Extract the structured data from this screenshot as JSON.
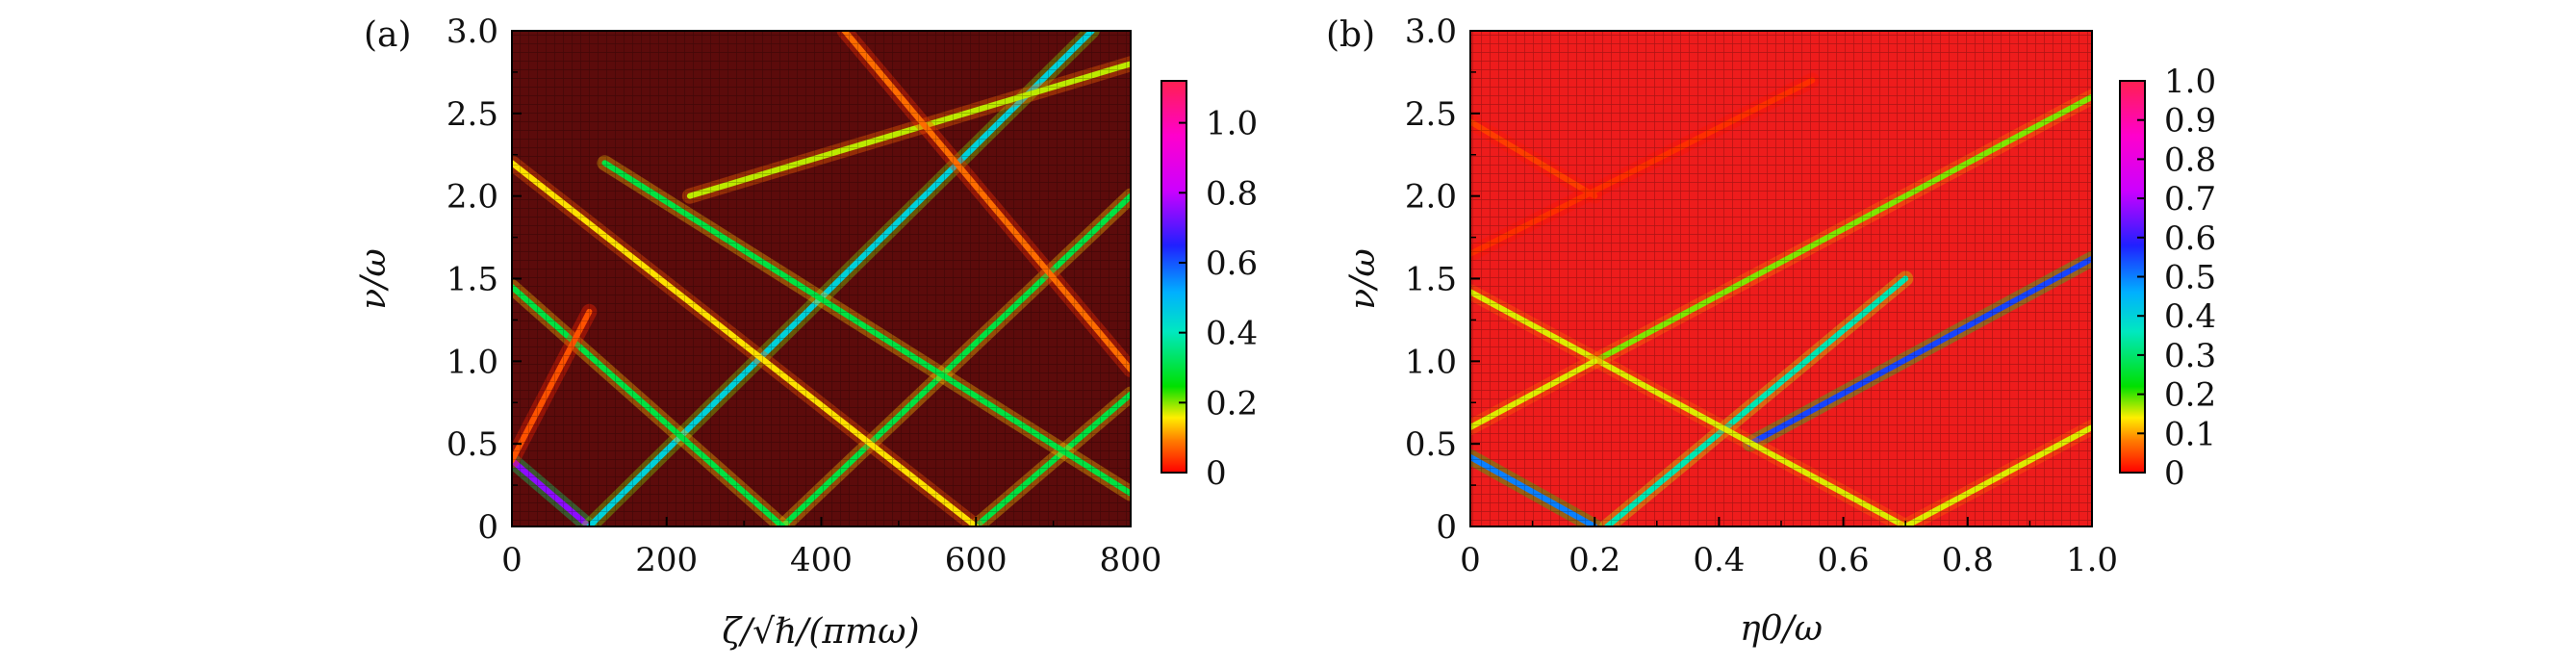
{
  "chart_data": [
    {
      "type": "heatmap",
      "panel_label": "(a)",
      "xlabel": "ζ/√ℏ/(πmω)",
      "ylabel": "ν/ω",
      "xlim": [
        0,
        800
      ],
      "ylim": [
        0,
        3.0
      ],
      "x_ticks": [
        "0",
        "200",
        "400",
        "600",
        "800"
      ],
      "y_ticks": [
        "0",
        "0.5",
        "1.0",
        "1.5",
        "2.0",
        "2.5",
        "3.0"
      ],
      "x_tick_values": [
        0,
        200,
        400,
        600,
        800
      ],
      "y_tick_values": [
        0,
        0.5,
        1.0,
        1.5,
        2.0,
        2.5,
        3.0
      ],
      "colorbar": {
        "ticks": [
          "0",
          "0.2",
          "0.4",
          "0.6",
          "0.8",
          "1.0"
        ],
        "tick_values": [
          0,
          0.2,
          0.4,
          0.6,
          0.8,
          1.0
        ],
        "range": [
          0,
          1.12
        ]
      },
      "background_value": 0.0,
      "lines": [
        {
          "points": [
            [
              0,
              0.4
            ],
            [
              100,
              0.0
            ]
          ],
          "value": 0.75
        },
        {
          "points": [
            [
              100,
              0.0
            ],
            [
              750,
              3.0
            ]
          ],
          "value": 0.45
        },
        {
          "points": [
            [
              350,
              0.0
            ],
            [
              800,
              2.0
            ]
          ],
          "value": 0.3
        },
        {
          "points": [
            [
              600,
              0.0
            ],
            [
              800,
              0.8
            ]
          ],
          "value": 0.3
        },
        {
          "points": [
            [
              0,
              1.45
            ],
            [
              350,
              0.0
            ]
          ],
          "value": 0.3
        },
        {
          "points": [
            [
              0,
              2.2
            ],
            [
              600,
              0.0
            ]
          ],
          "value": 0.15
        },
        {
          "points": [
            [
              120,
              2.2
            ],
            [
              800,
              0.2
            ]
          ],
          "value": 0.3
        },
        {
          "points": [
            [
              230,
              2.0
            ],
            [
              800,
              2.8
            ]
          ],
          "value": 0.18
        },
        {
          "points": [
            [
              430,
              3.0
            ],
            [
              800,
              0.95
            ]
          ],
          "value": 0.08
        },
        {
          "points": [
            [
              0,
              0.4
            ],
            [
              100,
              1.3
            ]
          ],
          "value": 0.06
        }
      ]
    },
    {
      "type": "heatmap",
      "panel_label": "(b)",
      "xlabel": "η0/ω",
      "ylabel": "ν/ω",
      "xlim": [
        0,
        1.0
      ],
      "ylim": [
        0,
        3.0
      ],
      "x_ticks": [
        "0",
        "0.2",
        "0.4",
        "0.6",
        "0.8",
        "1.0"
      ],
      "y_ticks": [
        "0",
        "0.5",
        "1.0",
        "1.5",
        "2.0",
        "2.5",
        "3.0"
      ],
      "x_tick_values": [
        0,
        0.2,
        0.4,
        0.6,
        0.8,
        1.0
      ],
      "y_tick_values": [
        0,
        0.5,
        1.0,
        1.5,
        2.0,
        2.5,
        3.0
      ],
      "colorbar": {
        "ticks": [
          "0",
          "0.1",
          "0.2",
          "0.3",
          "0.4",
          "0.5",
          "0.6",
          "0.7",
          "0.8",
          "0.9",
          "1.0"
        ],
        "tick_values": [
          0,
          0.1,
          0.2,
          0.3,
          0.4,
          0.5,
          0.6,
          0.7,
          0.8,
          0.9,
          1.0
        ],
        "range": [
          0,
          1.0
        ]
      },
      "background_value": 0.0,
      "lines": [
        {
          "points": [
            [
              0,
              0.42
            ],
            [
              0.2,
              0.0
            ]
          ],
          "value": 0.5
        },
        {
          "points": [
            [
              0.22,
              0.0
            ],
            [
              0.7,
              1.5
            ]
          ],
          "value": 0.35
        },
        {
          "points": [
            [
              0.45,
              0.5
            ],
            [
              1.0,
              1.62
            ]
          ],
          "value": 0.55
        },
        {
          "points": [
            [
              0.2,
              1.0
            ],
            [
              1.0,
              2.6
            ]
          ],
          "value": 0.18
        },
        {
          "points": [
            [
              0,
              1.42
            ],
            [
              0.7,
              0.0
            ]
          ],
          "value": 0.15
        },
        {
          "points": [
            [
              0,
              0.6
            ],
            [
              0.2,
              1.0
            ]
          ],
          "value": 0.15
        },
        {
          "points": [
            [
              0.7,
              0.0
            ],
            [
              1.0,
              0.6
            ]
          ],
          "value": 0.15
        },
        {
          "points": [
            [
              0,
              2.45
            ],
            [
              0.2,
              2.0
            ]
          ],
          "value": 0.04
        },
        {
          "points": [
            [
              0,
              1.65
            ],
            [
              0.55,
              2.7
            ]
          ],
          "value": 0.03
        }
      ]
    }
  ]
}
